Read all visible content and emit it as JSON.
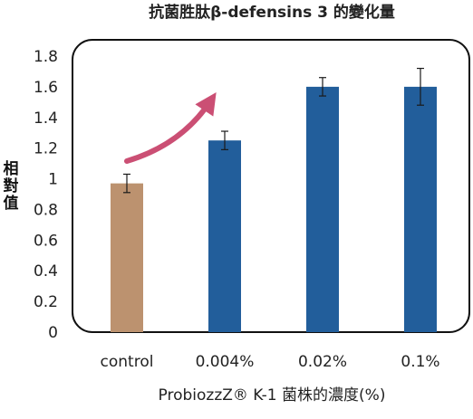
{
  "chart_data": {
    "type": "bar",
    "title": "抗菌胜肽β-defensins 3 的變化量",
    "xlabel": "ProbiozzZ® K-1 菌株的濃度(%)",
    "ylabel": [
      "相",
      "對",
      "值"
    ],
    "categories": [
      "control",
      "0.004%",
      "0.02%",
      "0.1%"
    ],
    "values": [
      0.97,
      1.25,
      1.6,
      1.6
    ],
    "errors": [
      0.06,
      0.06,
      0.06,
      0.12
    ],
    "bar_colors": [
      "#bc926f",
      "#225e9b",
      "#225e9b",
      "#225e9b"
    ],
    "ylim": [
      0,
      1.8
    ],
    "yticks": [
      "0",
      "0.2",
      "0.4",
      "0.6",
      "0.8",
      "1",
      "1.2",
      "1.4",
      "1.6",
      "1.8"
    ],
    "grid": false,
    "annotation": "curved arrow pointing up-right",
    "arrow_color": "#cb4f74"
  }
}
